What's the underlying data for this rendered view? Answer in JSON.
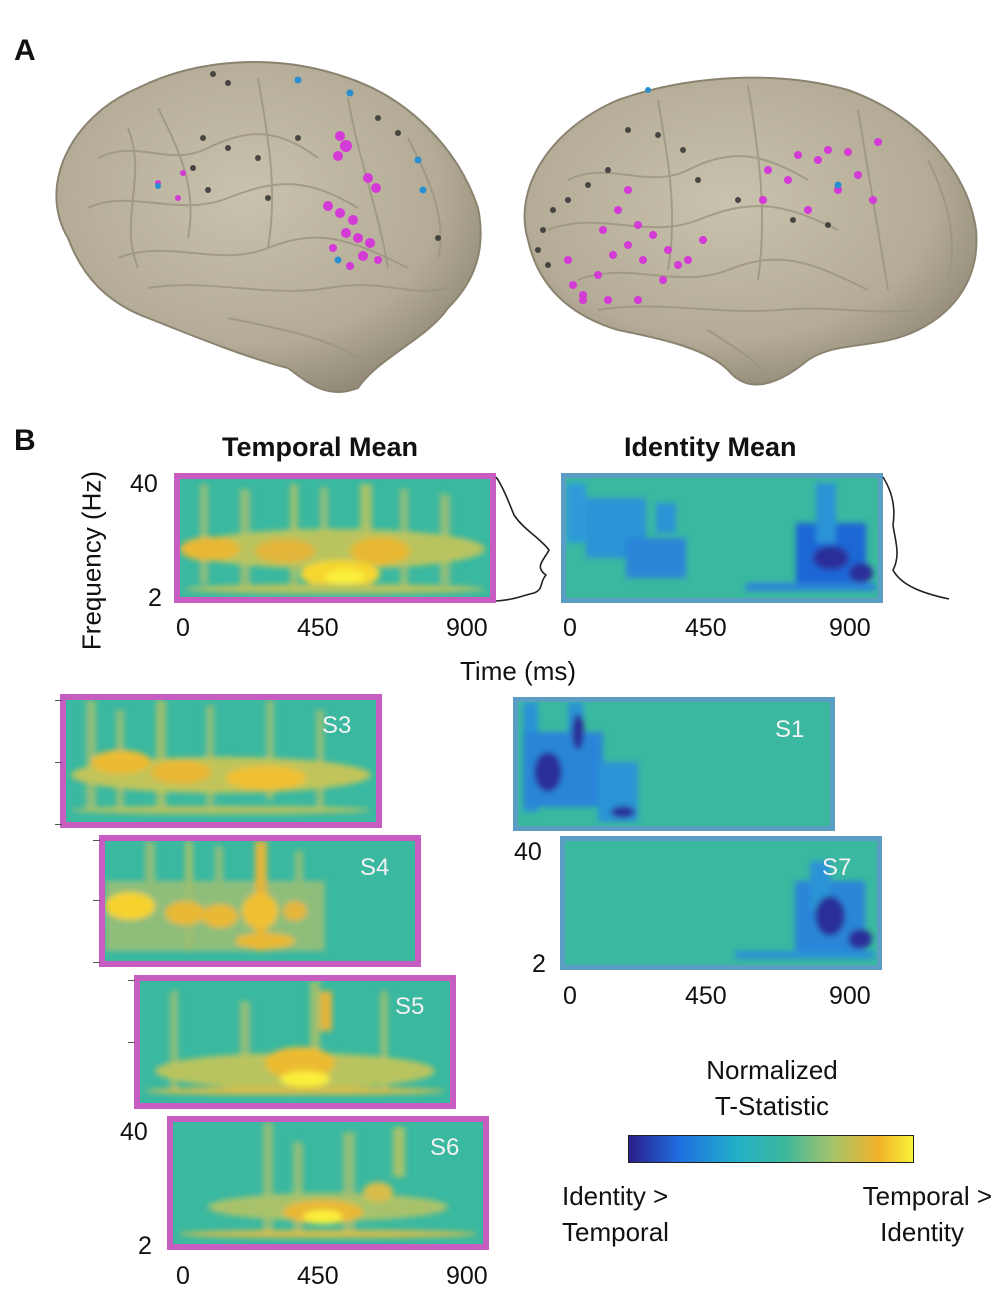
{
  "panel_a": {
    "letter": "A"
  },
  "panel_b": {
    "letter": "B",
    "temporal_title": "Temporal Mean",
    "identity_title": "Identity Mean",
    "y_axis_label": "Frequency (Hz)",
    "x_axis_label": "Time (ms)",
    "y_ticks": [
      "40",
      "2"
    ],
    "x_ticks": [
      "0",
      "450",
      "900"
    ],
    "subjects_temporal": [
      "S3",
      "S4",
      "S5",
      "S6"
    ],
    "subjects_identity": [
      "S1",
      "S7"
    ]
  },
  "colorbar": {
    "title_line1": "Normalized",
    "title_line2": "T-Statistic",
    "left_line1": "Identity >",
    "left_line2": "Temporal",
    "right_line1": "Temporal >",
    "right_line2": "Identity",
    "colors": [
      "#2b1f8c",
      "#1f6fe0",
      "#21b0c8",
      "#3cb89c",
      "#a8c36a",
      "#f2b32a",
      "#f8f23a"
    ]
  },
  "colors": {
    "temporal_frame": "#c85dc1",
    "identity_frame": "#5b9ec4",
    "background_teal": "#3ab8a0",
    "electrode_magenta": "#d33ad6",
    "electrode_blue": "#2a8fd0",
    "electrode_black": "#2a2a2a"
  }
}
